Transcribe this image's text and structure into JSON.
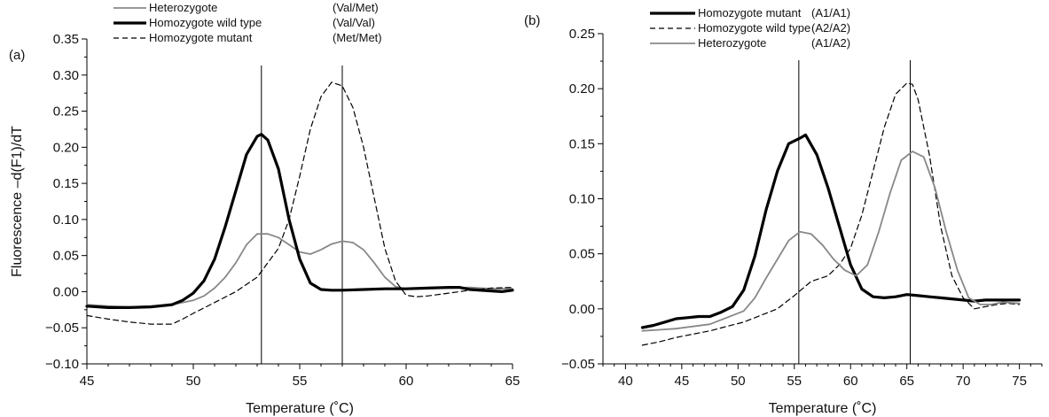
{
  "chart_data": [
    {
      "type": "line",
      "panel_label": "(a)",
      "xlabel": "Temperature (˚C)",
      "ylabel": "Fluorescence –d(F1)/dT",
      "xlim": [
        45,
        65
      ],
      "ylim": [
        -0.1,
        0.35
      ],
      "xticks": [
        "45",
        "50",
        "55",
        "60",
        "65"
      ],
      "yticks": [
        "−0.10",
        "−0.05",
        "0.00",
        "0.05",
        "0.10",
        "0.15",
        "0.20",
        "0.25",
        "0.30",
        "0.35"
      ],
      "vlines": [
        53.2,
        57.0
      ],
      "legend_position": "top",
      "series": [
        {
          "name": "Heterozygote",
          "genotype": "(Val/Met)",
          "color": "#888888",
          "style": "solid-thin",
          "x": [
            45,
            46,
            47,
            48,
            49,
            50,
            50.5,
            51,
            51.5,
            52,
            52.5,
            53,
            53.5,
            54,
            54.5,
            55,
            55.5,
            56,
            56.5,
            57,
            57.5,
            58,
            58.5,
            59,
            59.5,
            60,
            61,
            62,
            63,
            64,
            65
          ],
          "y": [
            -0.018,
            -0.02,
            -0.021,
            -0.02,
            -0.018,
            -0.012,
            -0.006,
            0.005,
            0.02,
            0.04,
            0.065,
            0.08,
            0.08,
            0.075,
            0.065,
            0.055,
            0.052,
            0.058,
            0.066,
            0.07,
            0.068,
            0.058,
            0.04,
            0.02,
            0.007,
            0.004,
            0.005,
            0.005,
            0.006,
            0.004,
            0.004
          ]
        },
        {
          "name": "Homozygote wild type",
          "genotype": "(Val/Val)",
          "color": "#000000",
          "style": "solid-thick",
          "x": [
            45,
            46,
            47,
            48,
            49,
            49.5,
            50,
            50.5,
            51,
            51.5,
            52,
            52.5,
            53,
            53.2,
            53.5,
            54,
            54.5,
            55,
            55.5,
            56,
            56.5,
            57,
            58,
            59,
            60,
            61,
            62,
            62.5,
            63,
            64,
            64.5,
            65
          ],
          "y": [
            -0.02,
            -0.022,
            -0.022,
            -0.021,
            -0.018,
            -0.012,
            -0.002,
            0.015,
            0.045,
            0.09,
            0.14,
            0.19,
            0.215,
            0.218,
            0.21,
            0.17,
            0.1,
            0.045,
            0.012,
            0.003,
            0.002,
            0.002,
            0.003,
            0.004,
            0.004,
            0.005,
            0.006,
            0.006,
            0.003,
            0.001,
            0.0,
            0.002
          ]
        },
        {
          "name": "Homozygote mutant",
          "genotype": "(Met/Met)",
          "color": "#000000",
          "style": "dashed",
          "x": [
            45,
            46,
            47,
            48,
            49,
            49.5,
            50,
            51,
            52,
            53,
            54,
            54.5,
            55,
            55.5,
            56,
            56.5,
            57,
            57.5,
            58,
            58.5,
            59,
            59.5,
            60,
            60.5,
            61,
            62,
            63,
            64,
            65
          ],
          "y": [
            -0.033,
            -0.038,
            -0.042,
            -0.045,
            -0.045,
            -0.038,
            -0.03,
            -0.015,
            0.0,
            0.02,
            0.06,
            0.1,
            0.16,
            0.225,
            0.27,
            0.29,
            0.285,
            0.255,
            0.2,
            0.13,
            0.06,
            0.015,
            -0.005,
            -0.007,
            -0.006,
            -0.002,
            0.002,
            0.005,
            0.006
          ]
        }
      ]
    },
    {
      "type": "line",
      "panel_label": "(b)",
      "xlabel": "Temperature (˚C)",
      "ylabel": "",
      "xlim": [
        38,
        77
      ],
      "ylim": [
        -0.05,
        0.25
      ],
      "xticks": [
        "40",
        "45",
        "50",
        "55",
        "60",
        "65",
        "70",
        "75"
      ],
      "yticks": [
        "−0.05",
        "0.00",
        "0.05",
        "0.10",
        "0.15",
        "0.20",
        "0.25"
      ],
      "vlines": [
        55.4,
        65.3
      ],
      "legend_position": "top",
      "series": [
        {
          "name": "Homozygote mutant",
          "genotype": "(A1/A1)",
          "color": "#000000",
          "style": "solid-thick",
          "x": [
            41.5,
            42.5,
            43.5,
            44.5,
            45.5,
            46.5,
            47.5,
            48.5,
            49.5,
            50.5,
            51.5,
            52.5,
            53.5,
            54.5,
            55.5,
            56,
            57,
            58,
            59,
            60,
            61,
            62,
            63,
            64,
            65,
            66,
            67,
            68,
            69,
            70,
            71,
            72,
            73,
            74,
            75
          ],
          "y": [
            -0.017,
            -0.015,
            -0.012,
            -0.009,
            -0.008,
            -0.007,
            -0.007,
            -0.003,
            0.002,
            0.017,
            0.048,
            0.09,
            0.125,
            0.15,
            0.155,
            0.158,
            0.14,
            0.11,
            0.075,
            0.04,
            0.018,
            0.011,
            0.01,
            0.011,
            0.013,
            0.012,
            0.011,
            0.01,
            0.009,
            0.008,
            0.007,
            0.008,
            0.008,
            0.008,
            0.008
          ]
        },
        {
          "name": "Homozygote wild type",
          "genotype": "(A2/A2)",
          "color": "#000000",
          "style": "dashed",
          "x": [
            41.5,
            43,
            44.5,
            46,
            47.5,
            49,
            50.5,
            52,
            53.5,
            55,
            56.5,
            58,
            59,
            60,
            61,
            62,
            63,
            64,
            65,
            65.5,
            66,
            67,
            68,
            69,
            70,
            71,
            72,
            73,
            74,
            75
          ],
          "y": [
            -0.033,
            -0.03,
            -0.026,
            -0.023,
            -0.02,
            -0.016,
            -0.012,
            -0.006,
            0.0,
            0.012,
            0.025,
            0.03,
            0.04,
            0.055,
            0.085,
            0.125,
            0.165,
            0.195,
            0.205,
            0.204,
            0.19,
            0.14,
            0.075,
            0.03,
            0.01,
            0.0,
            0.002,
            0.004,
            0.005,
            0.004
          ]
        },
        {
          "name": "Heterozygote",
          "genotype": "(A1/A2)",
          "color": "#888888",
          "style": "solid-thin",
          "x": [
            41.5,
            43,
            44.5,
            46,
            47.5,
            49,
            50.5,
            51.5,
            52.5,
            53.5,
            54.5,
            55.5,
            56.5,
            57.5,
            58.5,
            59.5,
            60.5,
            61.5,
            62.5,
            63.5,
            64.5,
            65.5,
            66.5,
            67.5,
            68.5,
            69.5,
            70.5,
            71.5,
            72.5,
            73.5,
            75
          ],
          "y": [
            -0.02,
            -0.019,
            -0.018,
            -0.016,
            -0.014,
            -0.008,
            -0.002,
            0.01,
            0.028,
            0.045,
            0.062,
            0.07,
            0.068,
            0.058,
            0.045,
            0.035,
            0.03,
            0.04,
            0.07,
            0.105,
            0.135,
            0.143,
            0.138,
            0.11,
            0.07,
            0.035,
            0.01,
            0.004,
            0.004,
            0.006,
            0.005
          ]
        }
      ]
    }
  ]
}
